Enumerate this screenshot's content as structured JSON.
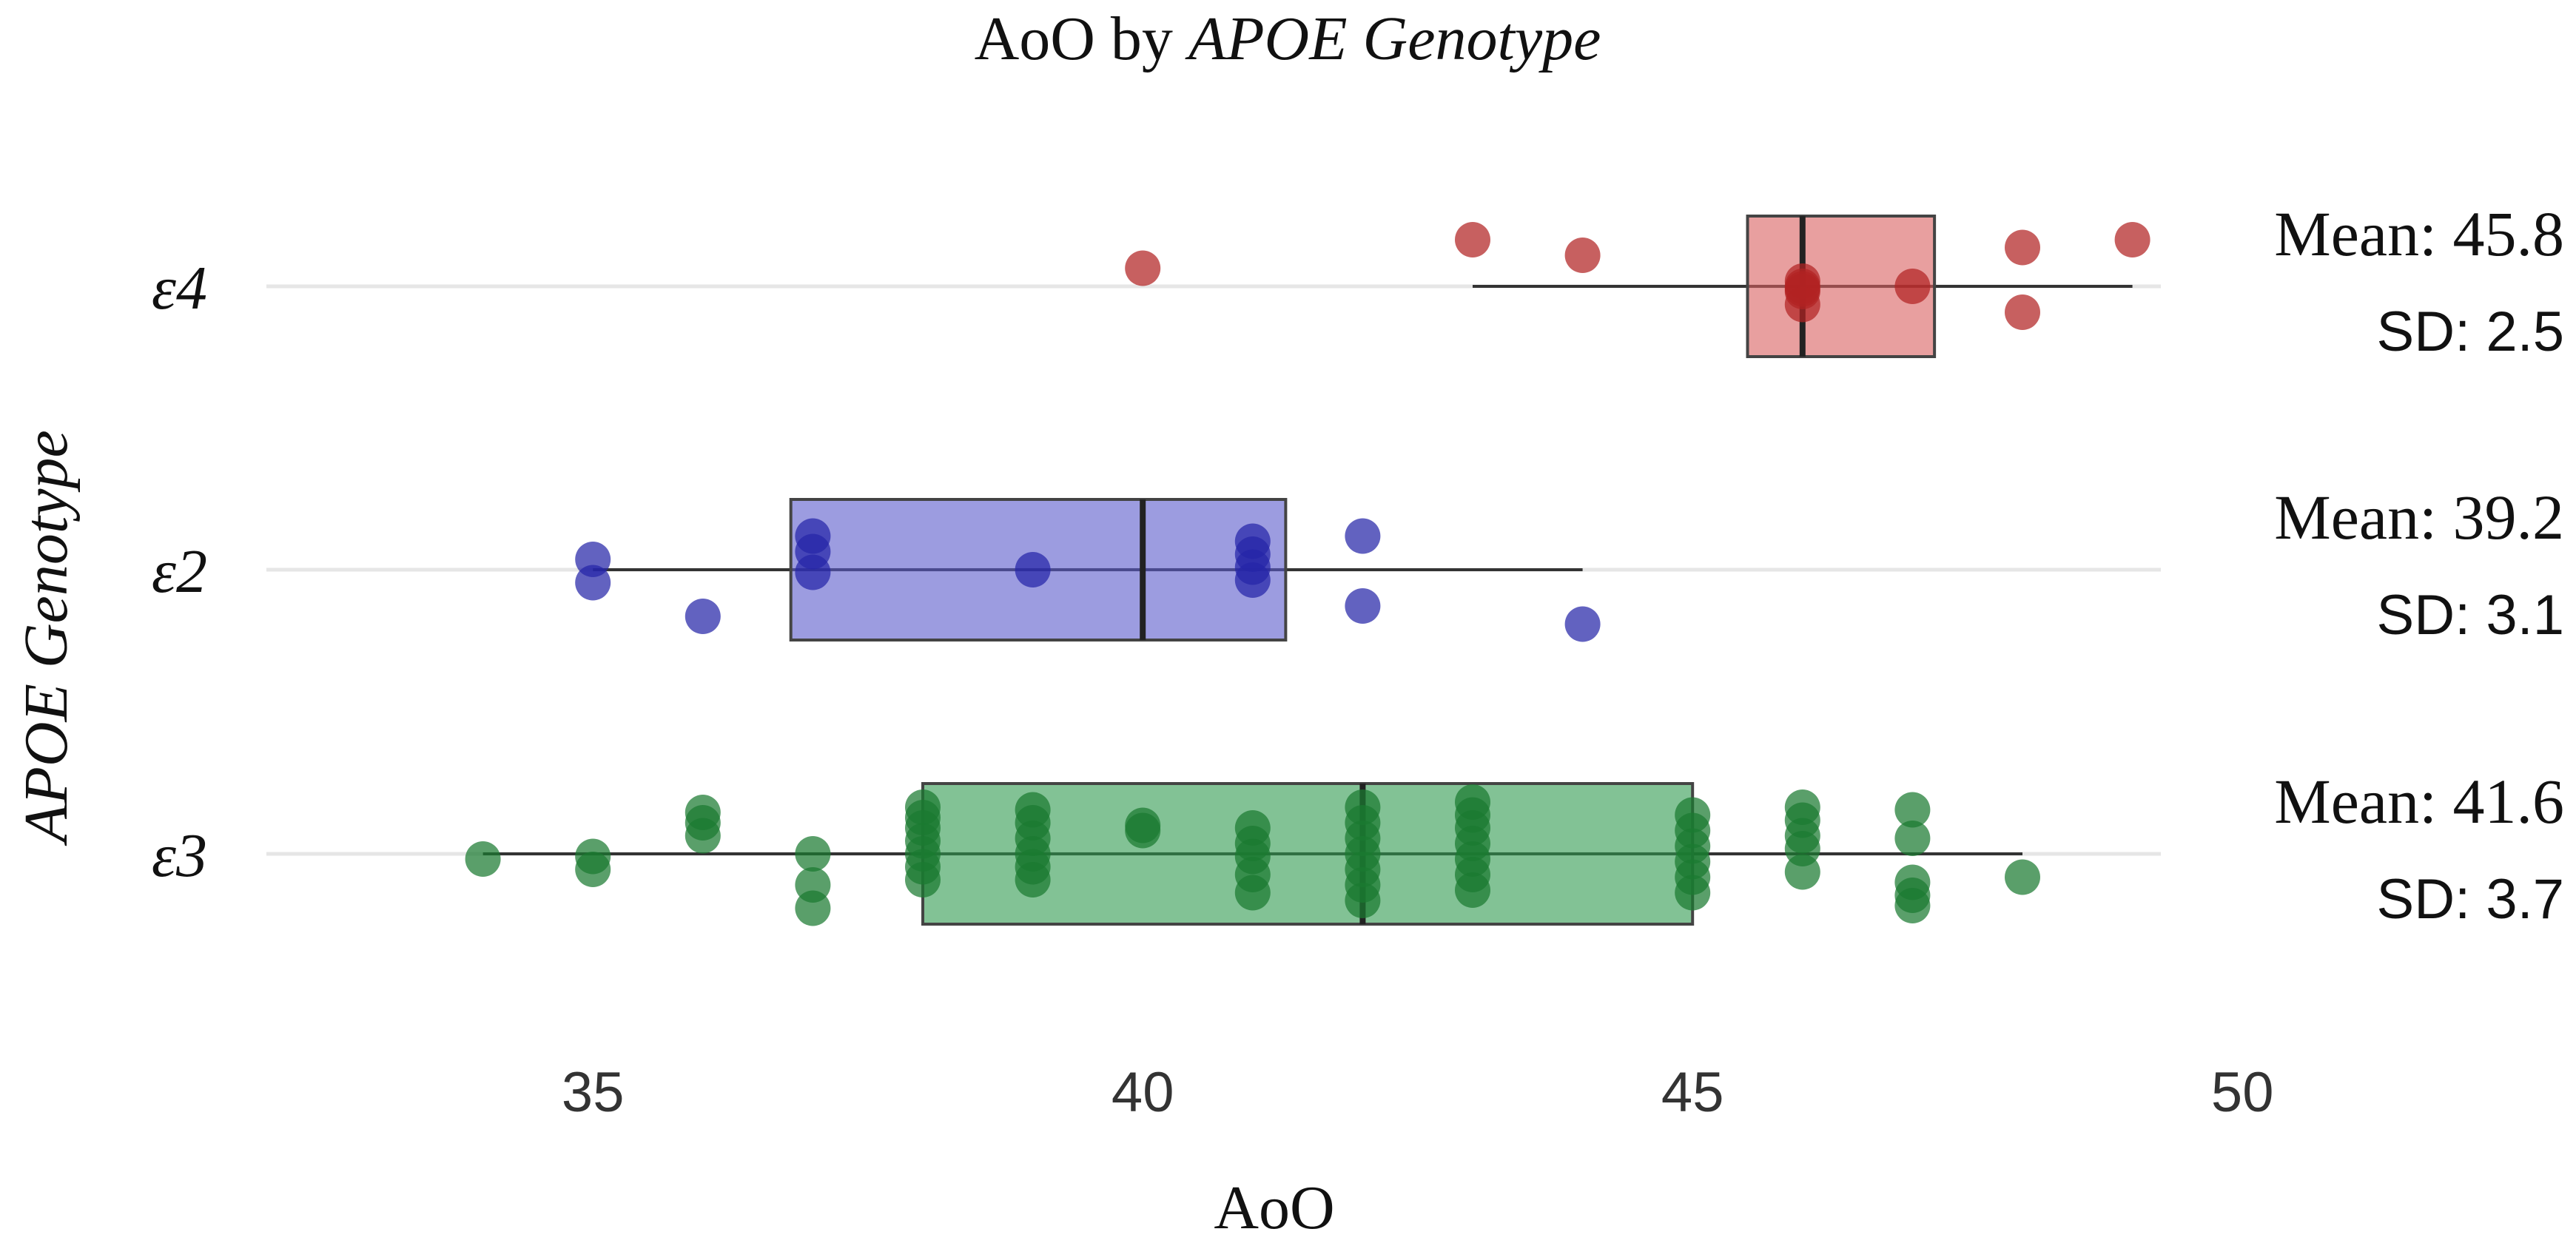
{
  "chart_data": {
    "type": "box",
    "title_prefix": "AoO by ",
    "title_italic": "APOE Genotype",
    "xlabel": "AoO",
    "ylabel": "APOE Genotype",
    "xlim": [
      33,
      50
    ],
    "xticks": [
      35,
      40,
      45,
      50
    ],
    "grid": true,
    "series": [
      {
        "name": "ε4",
        "color": "#d95f5f",
        "dark": "#b22222",
        "box": {
          "whisker_low": 43,
          "q1": 45.5,
          "median": 46,
          "q3": 47.2,
          "whisker_high": 49
        },
        "mean_label": "Mean: 45.8",
        "sd_label": "SD: 2.5",
        "points": [
          [
            40,
            0.35
          ],
          [
            43,
            0.9
          ],
          [
            44,
            0.6
          ],
          [
            46,
            0.1
          ],
          [
            46,
            0.0
          ],
          [
            46,
            -0.1
          ],
          [
            46,
            -0.05
          ],
          [
            46,
            -0.35
          ],
          [
            47,
            0.0
          ],
          [
            48,
            0.75
          ],
          [
            48,
            -0.5
          ],
          [
            49,
            0.9
          ]
        ]
      },
      {
        "name": "ε2",
        "color": "#5a5acb",
        "dark": "#2626a8",
        "box": {
          "whisker_low": 35,
          "q1": 36.8,
          "median": 40,
          "q3": 41.3,
          "whisker_high": 44
        },
        "mean_label": "Mean: 39.2",
        "sd_label": "SD: 3.1",
        "points": [
          [
            35,
            0.2
          ],
          [
            35,
            -0.25
          ],
          [
            36,
            -0.9
          ],
          [
            37,
            0.65
          ],
          [
            37,
            0.35
          ],
          [
            37,
            -0.05
          ],
          [
            39,
            0.0
          ],
          [
            41,
            0.55
          ],
          [
            41,
            0.3
          ],
          [
            41,
            0.05
          ],
          [
            41,
            -0.2
          ],
          [
            42,
            0.65
          ],
          [
            42,
            -0.7
          ],
          [
            44,
            -1.05
          ]
        ]
      },
      {
        "name": "ε3",
        "color": "#2e9a4e",
        "dark": "#1a7a30",
        "box": {
          "whisker_low": 34,
          "q1": 38,
          "median": 42,
          "q3": 45,
          "whisker_high": 48
        },
        "mean_label": "Mean: 41.6",
        "sd_label": "SD: 3.7",
        "points": [
          [
            34,
            -0.1
          ],
          [
            35,
            -0.05
          ],
          [
            35,
            -0.3
          ],
          [
            36,
            0.8
          ],
          [
            36,
            0.6
          ],
          [
            36,
            0.35
          ],
          [
            37,
            0.0
          ],
          [
            37,
            -0.6
          ],
          [
            37,
            -1.05
          ],
          [
            38,
            0.9
          ],
          [
            38,
            0.7
          ],
          [
            38,
            0.5
          ],
          [
            38,
            0.25
          ],
          [
            38,
            0.0
          ],
          [
            38,
            -0.25
          ],
          [
            38,
            -0.5
          ],
          [
            39,
            0.85
          ],
          [
            39,
            0.6
          ],
          [
            39,
            0.3
          ],
          [
            39,
            0.0
          ],
          [
            39,
            -0.25
          ],
          [
            39,
            -0.5
          ],
          [
            40,
            0.55
          ],
          [
            40,
            0.45
          ],
          [
            41,
            0.5
          ],
          [
            41,
            0.2
          ],
          [
            41,
            -0.05
          ],
          [
            41,
            -0.4
          ],
          [
            41,
            -0.75
          ],
          [
            42,
            0.9
          ],
          [
            42,
            0.6
          ],
          [
            42,
            0.3
          ],
          [
            42,
            0.0
          ],
          [
            42,
            -0.3
          ],
          [
            42,
            -0.6
          ],
          [
            42,
            -0.9
          ],
          [
            43,
            1.0
          ],
          [
            43,
            0.75
          ],
          [
            43,
            0.5
          ],
          [
            43,
            0.2
          ],
          [
            43,
            -0.1
          ],
          [
            43,
            -0.4
          ],
          [
            43,
            -0.7
          ],
          [
            45,
            0.75
          ],
          [
            45,
            0.45
          ],
          [
            45,
            0.15
          ],
          [
            45,
            -0.15
          ],
          [
            45,
            -0.45
          ],
          [
            45,
            -0.75
          ],
          [
            46,
            0.9
          ],
          [
            46,
            0.65
          ],
          [
            46,
            0.35
          ],
          [
            46,
            0.1
          ],
          [
            46,
            -0.35
          ],
          [
            47,
            0.85
          ],
          [
            47,
            0.3
          ],
          [
            47,
            -0.55
          ],
          [
            47,
            -0.8
          ],
          [
            47,
            -1.0
          ],
          [
            48,
            -0.45
          ]
        ]
      }
    ]
  }
}
